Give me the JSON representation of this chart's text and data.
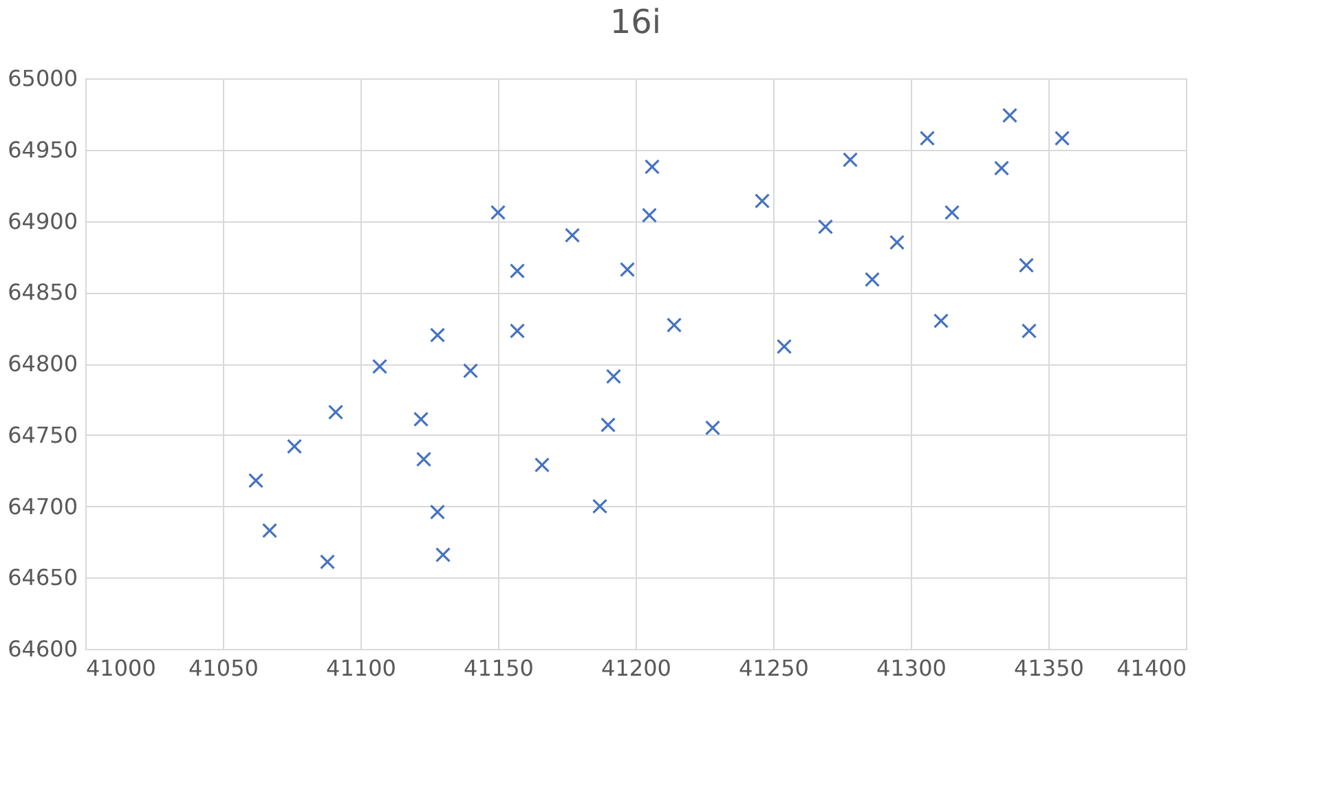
{
  "chart_data": {
    "type": "scatter",
    "title": "16i",
    "x": [
      41062,
      41067,
      41076,
      41088,
      41091,
      41107,
      41122,
      41123,
      41128,
      41128,
      41130,
      41140,
      41150,
      41157,
      41157,
      41166,
      41177,
      41187,
      41190,
      41192,
      41197,
      41205,
      41206,
      41214,
      41228,
      41246,
      41254,
      41269,
      41278,
      41286,
      41295,
      41306,
      41311,
      41315,
      41333,
      41336,
      41342,
      41343,
      41355
    ],
    "series": [
      {
        "color": "#4472c4",
        "values": [
          64718,
          64683,
          64742,
          64661,
          64766,
          64798,
          64761,
          64733,
          64820,
          64696,
          64666,
          64795,
          64906,
          64865,
          64823,
          64729,
          64890,
          64700,
          64757,
          64791,
          64866,
          64904,
          64938,
          64827,
          64755,
          64914,
          64812,
          64896,
          64943,
          64859,
          64885,
          64958,
          64830,
          64906,
          64937,
          64974,
          64869,
          64823,
          64958
        ]
      }
    ],
    "xlim": [
      41000,
      41400
    ],
    "xticks": [
      41000,
      41050,
      41100,
      41150,
      41200,
      41250,
      41300,
      41350,
      41400
    ],
    "ylim": [
      64600,
      65000
    ],
    "yticks": [
      64600,
      64650,
      64700,
      64750,
      64800,
      64850,
      64900,
      64950,
      65000
    ],
    "grid": true,
    "marker": "cross"
  }
}
